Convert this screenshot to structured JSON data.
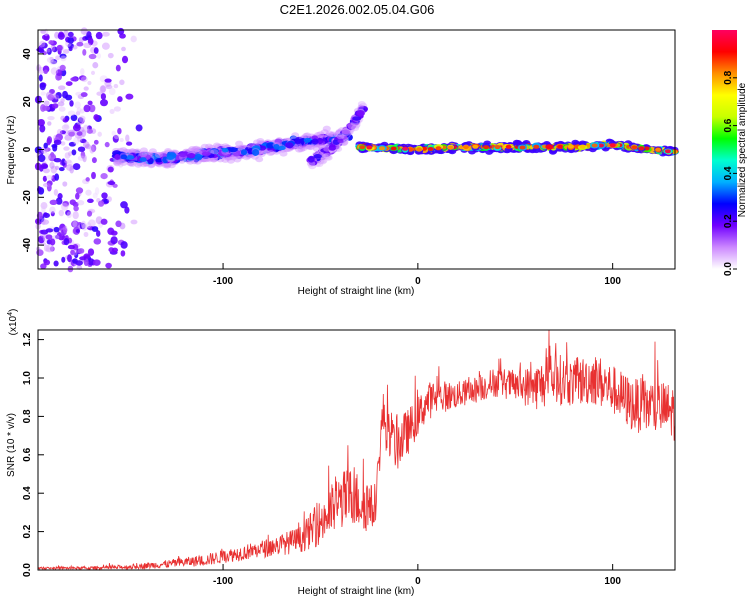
{
  "chart_data": [
    {
      "type": "heatmap",
      "title": "C2E1.2026.002.05.04.G06",
      "xlabel": "Height of straight line (km)",
      "ylabel": "Frequency (Hz)",
      "xlim": [
        -195,
        132
      ],
      "ylim": [
        -50,
        50
      ],
      "xticks": [
        -100,
        0,
        100
      ],
      "yticks": [
        -40,
        -20,
        0,
        20,
        40
      ],
      "colorbar": {
        "label": "Normalized spectral amplitude",
        "range": [
          0,
          1
        ],
        "ticks": [
          0.0,
          0.2,
          0.4,
          0.6,
          0.8
        ],
        "colors": [
          "#ffffff",
          "#cc88ff",
          "#7000ff",
          "#0000ff",
          "#00b0ff",
          "#00ffd0",
          "#00ff00",
          "#c8ff00",
          "#ffff00",
          "#ff9000",
          "#ff0000",
          "#ff0060"
        ]
      },
      "traces": [
        {
          "name": "scattered noise",
          "x_range": [
            -195,
            -140
          ],
          "freq_range": [
            -50,
            50
          ],
          "amplitude": 0.15
        },
        {
          "name": "left branch",
          "x": [
            -155,
            -130,
            -110,
            -90,
            -70,
            -50,
            -35
          ],
          "freq": [
            -3,
            -4,
            -2,
            -1,
            2,
            4,
            6
          ],
          "amplitude": 0.35
        },
        {
          "name": "rising branch",
          "x": [
            -55,
            -45,
            -38,
            -32,
            -28
          ],
          "freq": [
            -5,
            0,
            6,
            12,
            18
          ],
          "amplitude": 0.25
        },
        {
          "name": "main signal",
          "x": [
            -30,
            0,
            20,
            50,
            80,
            100,
            120,
            132
          ],
          "freq": [
            1,
            0,
            1,
            1,
            1,
            2,
            0,
            -1
          ],
          "amplitude": 0.9
        }
      ]
    },
    {
      "type": "line",
      "xlabel": "Height of straight line (km)",
      "ylabel": "SNR (10 * v/v)",
      "y_multiplier": "(x10^4)",
      "y_multiplier_base": "(x10",
      "y_multiplier_exp": "4",
      "y_multiplier_close": ")",
      "xlim": [
        -195,
        132
      ],
      "ylim": [
        0,
        1.25
      ],
      "xticks": [
        -100,
        0,
        100
      ],
      "yticks": [
        "0.0",
        "0.2",
        "0.4",
        "0.6",
        "0.8",
        "1.0",
        "1.2"
      ],
      "color": "#e83030",
      "series": [
        {
          "name": "SNR",
          "x": [
            -195,
            -170,
            -150,
            -130,
            -110,
            -90,
            -75,
            -60,
            -50,
            -45,
            -40,
            -35,
            -30,
            -25,
            -22,
            -18,
            -14,
            -10,
            -5,
            0,
            5,
            10,
            20,
            30,
            40,
            50,
            60,
            70,
            80,
            90,
            100,
            110,
            120,
            132
          ],
          "y": [
            0.01,
            0.01,
            0.015,
            0.03,
            0.05,
            0.09,
            0.12,
            0.16,
            0.25,
            0.3,
            0.36,
            0.38,
            0.36,
            0.34,
            0.3,
            0.82,
            0.65,
            0.66,
            0.72,
            0.8,
            0.88,
            0.9,
            0.91,
            0.94,
            0.98,
            0.96,
            0.95,
            1.0,
            0.97,
            1.0,
            0.94,
            0.86,
            0.85,
            0.82
          ],
          "noise": [
            0.005,
            0.008,
            0.012,
            0.02,
            0.03,
            0.04,
            0.05,
            0.07,
            0.12,
            0.14,
            0.15,
            0.16,
            0.15,
            0.15,
            0.08,
            0.12,
            0.14,
            0.14,
            0.12,
            0.1,
            0.1,
            0.09,
            0.07,
            0.07,
            0.08,
            0.08,
            0.12,
            0.14,
            0.12,
            0.14,
            0.13,
            0.14,
            0.15,
            0.15
          ]
        }
      ]
    }
  ]
}
